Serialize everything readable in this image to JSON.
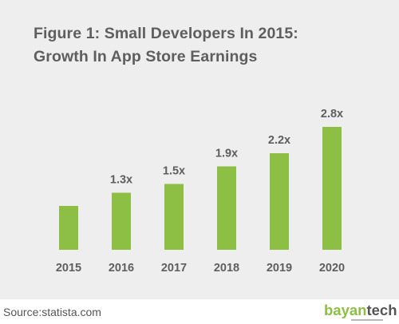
{
  "title": {
    "line1": "Figure 1: Small Developers In 2015:",
    "line2": "Growth In App Store Earnings"
  },
  "source": "Source:statista.com",
  "brand": {
    "part1": "bayan",
    "part2": "tech"
  },
  "colors": {
    "bar": "#8dbf45",
    "background": "#eeeeee",
    "text": "#5e5e5e"
  },
  "chart_data": {
    "type": "bar",
    "title": "Figure 1: Small Developers In 2015: Growth In App Store Earnings",
    "categories": [
      "2015",
      "2016",
      "2017",
      "2018",
      "2019",
      "2020"
    ],
    "values": [
      1.0,
      1.3,
      1.5,
      1.9,
      2.2,
      2.8
    ],
    "labels": [
      "",
      "1.3x",
      "1.5x",
      "1.9x",
      "2.2x",
      "2.8x"
    ],
    "xlabel": "",
    "ylabel": "",
    "ylim": [
      0,
      3
    ],
    "grid": false,
    "legend": "none"
  }
}
